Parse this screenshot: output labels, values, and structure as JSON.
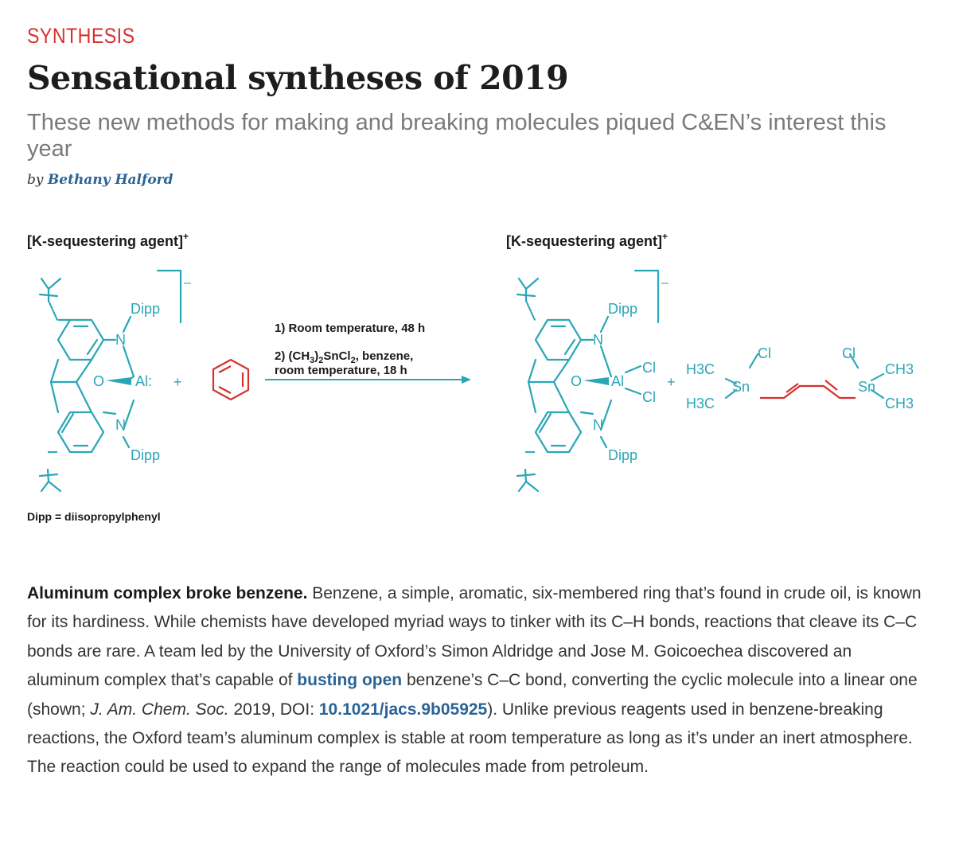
{
  "article": {
    "kicker": "SYNTHESIS",
    "title": "Sensational syntheses of 2019",
    "dek": "These new methods for making and breaking molecules piqued C&EN’s interest this year",
    "byline_prefix": "by",
    "author": "Bethany Halford"
  },
  "figure": {
    "left_cation": "[K-sequestering agent]",
    "right_cation": "[K-sequestering agent]",
    "plus_sup": "+",
    "minus_sup": "–",
    "dipp": "Dipp",
    "n": "N",
    "o": "O",
    "al_left": "Al:",
    "al_right": "Al",
    "cl": "Cl",
    "sn": "Sn",
    "plus": "+",
    "h3c_top": "H3C",
    "h3c_bottom": "H3C",
    "ch3_top": "CH3",
    "ch3_bottom": "CH3",
    "condition1": "1) Room temperature, 48 h",
    "condition2_prefix": "2) (CH",
    "condition2_sub1": "3",
    "condition2_mid": ")",
    "condition2_sub2": "2",
    "condition2_mid2": "SnCl",
    "condition2_sub3": "2",
    "condition2_suffix": ", benzene,",
    "condition2_line2": "room temperature, 18 h",
    "legend": "Dipp = diisopropylphenyl",
    "colors": {
      "teal": "#2aa6b7",
      "red": "#d4322f",
      "link": "#2a6496",
      "kicker": "#d4322f"
    }
  },
  "body": {
    "lead": "Aluminum complex broke benzene.",
    "p1": " Benzene, a simple, aromatic, six-membered ring that’s found in crude oil, is known for its hardiness. While chemists have developed myriad ways to tinker with its C–H bonds, reactions that cleave its C–C bonds are rare. A team led by the University of Oxford’s Simon Aldridge and Jose M. Goicoechea discovered an aluminum complex that’s capable of ",
    "link1": "busting open",
    "p2": " benzene’s C–C bond, converting the cyclic molecule into a linear one (shown; ",
    "journal": "J. Am. Chem. Soc.",
    "p3": " 2019, DOI: ",
    "doi": "10.1021/jacs.9b05925",
    "p4": "). Unlike previous reagents used in benzene-breaking reactions, the Oxford team’s aluminum complex is stable at room temperature as long as it’s under an inert atmosphere. The reaction could be used to expand the range of molecules made from petroleum."
  }
}
